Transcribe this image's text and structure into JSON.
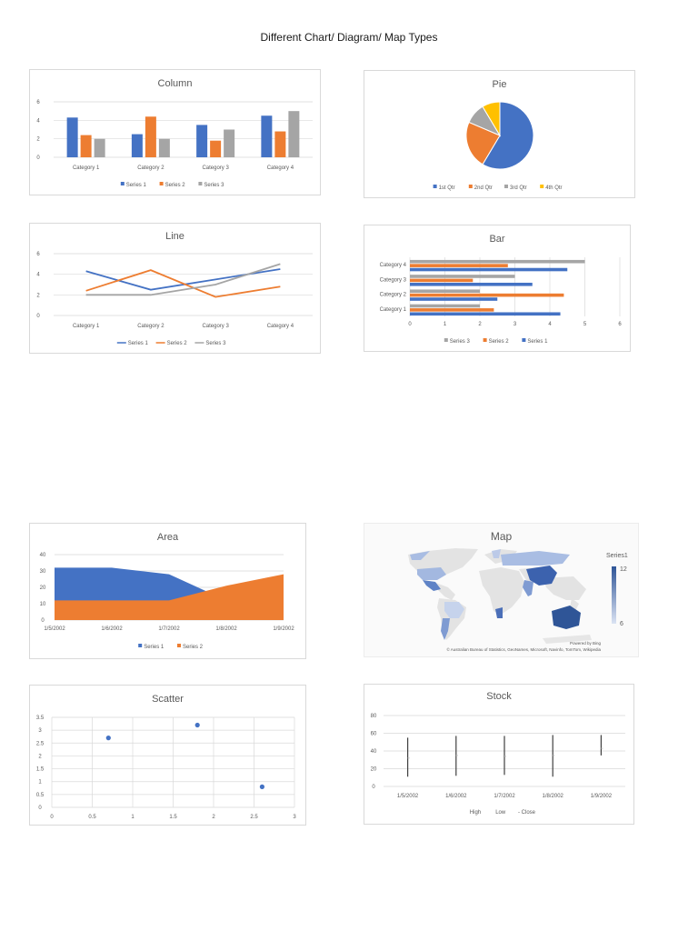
{
  "page": {
    "title": "Different Chart/ Diagram/ Map Types"
  },
  "colors": {
    "series1": "#4472c4",
    "series2": "#ed7d31",
    "series3": "#a5a5a5",
    "series4": "#ffc000",
    "grid": "#d9d9d9",
    "text": "#595959",
    "map_low": "#dbe3f3",
    "map_high": "#2f5597",
    "map_land": "#e3e3e3"
  },
  "chart_data": [
    {
      "id": "column",
      "type": "bar",
      "orientation": "vertical",
      "title": "Column",
      "categories": [
        "Category 1",
        "Category 2",
        "Category 3",
        "Category 4"
      ],
      "series": [
        {
          "name": "Series 1",
          "values": [
            4.3,
            2.5,
            3.5,
            4.5
          ]
        },
        {
          "name": "Series 2",
          "values": [
            2.4,
            4.4,
            1.8,
            2.8
          ]
        },
        {
          "name": "Series 3",
          "values": [
            2,
            2,
            3,
            5
          ]
        }
      ],
      "yticks": [
        0,
        2,
        4,
        6
      ],
      "ylim": [
        0,
        6
      ],
      "grid": true,
      "legend_position": "bottom",
      "xlabel": "",
      "ylabel": ""
    },
    {
      "id": "pie",
      "type": "pie",
      "title": "Pie",
      "categories": [
        "1st Qtr",
        "2nd Qtr",
        "3rd Qtr",
        "4th Qtr"
      ],
      "values": [
        8.2,
        3.2,
        1.4,
        1.2
      ],
      "legend_position": "bottom"
    },
    {
      "id": "line",
      "type": "line",
      "title": "Line",
      "categories": [
        "Category 1",
        "Category 2",
        "Category 3",
        "Category 4"
      ],
      "series": [
        {
          "name": "Series 1",
          "values": [
            4.3,
            2.5,
            3.5,
            4.5
          ]
        },
        {
          "name": "Series 2",
          "values": [
            2.4,
            4.4,
            1.8,
            2.8
          ]
        },
        {
          "name": "Series 3",
          "values": [
            2,
            2,
            3,
            5
          ]
        }
      ],
      "yticks": [
        0,
        2,
        4,
        6
      ],
      "ylim": [
        0,
        6
      ],
      "grid": true,
      "legend_position": "bottom",
      "xlabel": "",
      "ylabel": ""
    },
    {
      "id": "bar",
      "type": "bar",
      "orientation": "horizontal",
      "title": "Bar",
      "categories": [
        "Category 1",
        "Category 2",
        "Category 3",
        "Category 4"
      ],
      "series": [
        {
          "name": "Series 1",
          "values": [
            4.3,
            2.5,
            3.5,
            4.5
          ]
        },
        {
          "name": "Series 2",
          "values": [
            2.4,
            4.4,
            1.8,
            2.8
          ]
        },
        {
          "name": "Series 3",
          "values": [
            2,
            2,
            3,
            5
          ]
        }
      ],
      "xticks": [
        0,
        1,
        2,
        3,
        4,
        5,
        6
      ],
      "xlim": [
        0,
        6
      ],
      "grid": true,
      "legend_order": [
        "Series 3",
        "Series 2",
        "Series 1"
      ],
      "legend_position": "bottom",
      "xlabel": "",
      "ylabel": ""
    },
    {
      "id": "area",
      "type": "area",
      "title": "Area",
      "x": [
        "1/5/2002",
        "1/6/2002",
        "1/7/2002",
        "1/8/2002",
        "1/9/2002"
      ],
      "series": [
        {
          "name": "Series 1",
          "values": [
            32,
            32,
            28,
            12,
            15
          ]
        },
        {
          "name": "Series 2",
          "values": [
            12,
            12,
            12,
            21,
            28
          ]
        }
      ],
      "yticks": [
        0,
        10,
        20,
        30,
        40
      ],
      "ylim": [
        0,
        40
      ],
      "grid": true,
      "legend_position": "bottom",
      "xlabel": "",
      "ylabel": ""
    },
    {
      "id": "map",
      "type": "heatmap",
      "title": "Map",
      "series_name": "Series1",
      "scale": {
        "min": 6,
        "max": 12
      },
      "regions": [
        {
          "name": "Australia",
          "value": 12
        },
        {
          "name": "China",
          "value": 11
        },
        {
          "name": "Namibia",
          "value": 10.5
        },
        {
          "name": "Mexico",
          "value": 9.5
        },
        {
          "name": "India",
          "value": 9
        },
        {
          "name": "Argentina",
          "value": 8.5
        },
        {
          "name": "United States",
          "value": 7.5
        },
        {
          "name": "Russia",
          "value": 7
        },
        {
          "name": "Canada",
          "value": 7
        },
        {
          "name": "Brazil",
          "value": 6.5
        },
        {
          "name": "Finland",
          "value": 6.5
        }
      ],
      "credit_powered": "Powered by Bing",
      "credit_sources": "© Australian Bureau of Statistics, GeoNames, Microsoft, Navinfo, TomTom, Wikipedia"
    },
    {
      "id": "scatter",
      "type": "scatter",
      "title": "Scatter",
      "points": [
        {
          "x": 0.7,
          "y": 2.7
        },
        {
          "x": 1.8,
          "y": 3.2
        },
        {
          "x": 2.6,
          "y": 0.8
        }
      ],
      "xticks": [
        0,
        0.5,
        1,
        1.5,
        2,
        2.5,
        3
      ],
      "yticks": [
        0,
        0.5,
        1,
        1.5,
        2,
        2.5,
        3,
        3.5
      ],
      "xlim": [
        0,
        3
      ],
      "ylim": [
        0,
        3.5
      ],
      "grid": true,
      "xlabel": "",
      "ylabel": ""
    },
    {
      "id": "stock",
      "type": "line",
      "subtype": "high-low-close",
      "title": "Stock",
      "x": [
        "1/5/2002",
        "1/6/2002",
        "1/7/2002",
        "1/8/2002",
        "1/9/2002"
      ],
      "series": [
        {
          "name": "High",
          "values": [
            55,
            57,
            57,
            58,
            58
          ]
        },
        {
          "name": "Low",
          "values": [
            11,
            12,
            13,
            11,
            35
          ]
        },
        {
          "name": "Close",
          "values": [
            32,
            35,
            34,
            35,
            43
          ]
        }
      ],
      "yticks": [
        0,
        20,
        40,
        60,
        80
      ],
      "ylim": [
        0,
        80
      ],
      "grid": true,
      "legend_labels": [
        "High",
        "Low",
        "- Close"
      ],
      "legend_position": "bottom",
      "xlabel": "",
      "ylabel": ""
    }
  ]
}
